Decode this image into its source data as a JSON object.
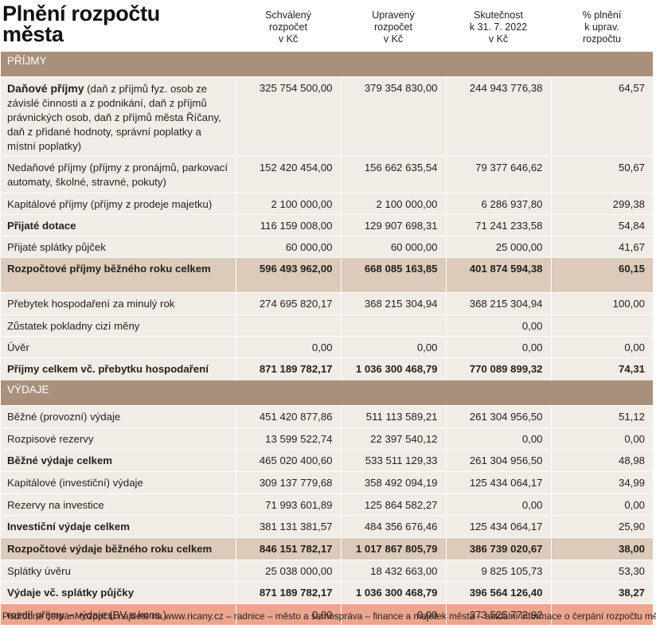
{
  "header": {
    "title_line1": "Plnění rozpočtu",
    "title_line2": "města",
    "columns": [
      "Schválený\nrozpočet\nv Kč",
      "Upravený\nrozpočet\nv Kč",
      "Skutečnost\nk 31. 7. 2022\nv Kč",
      "% plnění\nk uprav.\nrozpočtu"
    ]
  },
  "sections": {
    "income": "PŘÍJMY",
    "expenses": "VÝDAJE"
  },
  "rows": [
    {
      "bold_label": "Daňové příjmy",
      "label": " (daň z příjmů fyz. osob ze závislé činnosti a z podnikání, daň z příjmů právnických osob, daň z příjmů města Říčany, daň z přidané hodnoty, správní poplatky a místní poplatky)",
      "v1": "325 754 500,00",
      "v2": "379 354 830,00",
      "v3": "244 943 776,38",
      "pct": "64,57"
    },
    {
      "label": "Nedaňové příjmy (příjmy z pronájmů, parkovací automaty, školné, stravné, pokuty)",
      "v1": "152 420 454,00",
      "v2": "156 662 635,54",
      "v3": "79 377 646,62",
      "pct": "50,67"
    },
    {
      "label": "Kapitálové příjmy (příjmy z prodeje majetku)",
      "v1": "2 100 000,00",
      "v2": "2 100 000,00",
      "v3": "6 286 937,80",
      "pct": "299,38"
    },
    {
      "label": "Přijaté dotace",
      "v1": "116 159 008,00",
      "v2": "129 907 698,31",
      "v3": "71 241 233,58",
      "pct": "54,84"
    },
    {
      "label": "Přijaté splátky půjček",
      "v1": "60 000,00",
      "v2": "60 000,00",
      "v3": "25 000,00",
      "pct": "41,67"
    },
    {
      "label": "Rozpočtové příjmy běžného roku celkem",
      "v1": "596 493 962,00",
      "v2": "668 085 163,85",
      "v3": "401 874 594,38",
      "pct": "60,15"
    },
    {
      "label": "Přebytek hospodaření za minulý rok",
      "v1": "274 695 820,17",
      "v2": "368 215 304,94",
      "v3": "368 215 304,94",
      "pct": "100,00"
    },
    {
      "label": "Zůstatek pokladny cizí měny",
      "v1": "",
      "v2": "",
      "v3": "0,00",
      "pct": ""
    },
    {
      "label": "Úvěr",
      "v1": "0,00",
      "v2": "0,00",
      "v3": "0,00",
      "pct": "0,00"
    },
    {
      "label": "Příjmy celkem vč. přebytku hospodaření",
      "v1": "871 189 782,17",
      "v2": "1 036 300 468,79",
      "v3": "770 089 899,32",
      "pct": "74,31"
    },
    {
      "label": "Běžné (provozní) výdaje",
      "v1": "451 420 877,86",
      "v2": "511 113 589,21",
      "v3": "261 304 956,50",
      "pct": "51,12"
    },
    {
      "label": "Rozpisové rezervy",
      "v1": "13 599 522,74",
      "v2": "22 397 540,12",
      "v3": "0,00",
      "pct": "0,00"
    },
    {
      "label": "Běžné výdaje celkem",
      "v1": "465 020 400,60",
      "v2": "533 511 129,33",
      "v3": "261 304 956,50",
      "pct": "48,98"
    },
    {
      "label": "Kapitálové (investiční) výdaje",
      "v1": "309 137 779,68",
      "v2": "358 492 094,19",
      "v3": "125 434 064,17",
      "pct": "34,99"
    },
    {
      "label": "Rezervy na investice",
      "v1": "71 993 601,89",
      "v2": "125 864 582,27",
      "v3": "0,00",
      "pct": "0,00"
    },
    {
      "label": "Investiční výdaje celkem",
      "v1": "381 131 381,57",
      "v2": "484 356 676,46",
      "v3": "125 434 064,17",
      "pct": "25,90"
    },
    {
      "label": "Rozpočtové výdaje běžného roku celkem",
      "v1": "846 151 782,17",
      "v2": "1 017 867 805,79",
      "v3": "386 739 020,67",
      "pct": "38,00"
    },
    {
      "label": "Splátky úvěru",
      "v1": "25 038 000,00",
      "v2": "18 432 663,00",
      "v3": "9 825 105,73",
      "pct": "53,30"
    },
    {
      "label": "Výdaje vč. splátky půjčky",
      "v1": "871 189 782,17",
      "v2": "1 036 300 468,79",
      "v3": "396 564 126,40",
      "pct": "38,27"
    },
    {
      "label": "rozdíl příjmy – výdaje (BV s kons.)",
      "v1": "0,00",
      "v2": "0,00",
      "v3": "373 525 772,92",
      "pct": ""
    }
  ],
  "footer": "Podrobné čerpání rozpočtu najdete na www.ricany.cz – radnice – město a samospráva – finance a majetek města – aktuální informace o čerpání rozpočtu města",
  "colors": {
    "section_bg": "#a8907a",
    "row_bg": "#f1ece6",
    "sum_bg": "#dccbba",
    "diff_bg": "#eda58e"
  }
}
